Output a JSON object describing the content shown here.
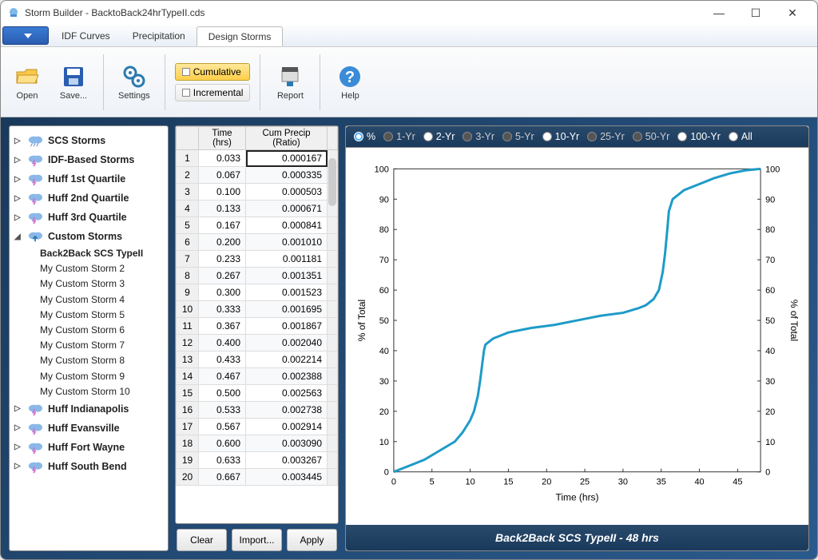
{
  "window": {
    "title": "Storm Builder - BacktoBack24hrTypeII.cds"
  },
  "menubar": {
    "tabs": [
      "IDF Curves",
      "Precipitation",
      "Design Storms"
    ],
    "active": 2
  },
  "ribbon": {
    "open": "Open",
    "save": "Save...",
    "settings": "Settings",
    "cumulative": "Cumulative",
    "incremental": "Incremental",
    "report": "Report",
    "help": "Help"
  },
  "tree": {
    "groups": [
      {
        "label": "SCS Storms",
        "expanded": false,
        "icon": "rain"
      },
      {
        "label": "IDF-Based Storms",
        "expanded": false,
        "icon": "bolt"
      },
      {
        "label": "Huff 1st Quartile",
        "expanded": false,
        "icon": "bolt"
      },
      {
        "label": "Huff 2nd Quartile",
        "expanded": false,
        "icon": "bolt"
      },
      {
        "label": "Huff 3rd Quartile",
        "expanded": false,
        "icon": "bolt"
      },
      {
        "label": "Custom Storms",
        "expanded": true,
        "icon": "up",
        "children": [
          "Back2Back SCS TypeII",
          "My Custom Storm  2",
          "My Custom Storm  3",
          "My Custom Storm  4",
          "My Custom Storm  5",
          "My Custom Storm  6",
          "My Custom Storm  7",
          "My Custom Storm  8",
          "My Custom Storm  9",
          "My Custom Storm  10"
        ],
        "selected": 0
      },
      {
        "label": "Huff Indianapolis",
        "expanded": false,
        "icon": "bolt"
      },
      {
        "label": "Huff Evansville",
        "expanded": false,
        "icon": "bolt"
      },
      {
        "label": "Huff Fort Wayne",
        "expanded": false,
        "icon": "bolt"
      },
      {
        "label": "Huff South Bend",
        "expanded": false,
        "icon": "bolt"
      }
    ]
  },
  "table": {
    "headers": {
      "time": "Time (hrs)",
      "cum": "Cum Precip (Ratio)"
    },
    "rows": [
      [
        "0.033",
        "0.000167"
      ],
      [
        "0.067",
        "0.000335"
      ],
      [
        "0.100",
        "0.000503"
      ],
      [
        "0.133",
        "0.000671"
      ],
      [
        "0.167",
        "0.000841"
      ],
      [
        "0.200",
        "0.001010"
      ],
      [
        "0.233",
        "0.001181"
      ],
      [
        "0.267",
        "0.001351"
      ],
      [
        "0.300",
        "0.001523"
      ],
      [
        "0.333",
        "0.001695"
      ],
      [
        "0.367",
        "0.001867"
      ],
      [
        "0.400",
        "0.002040"
      ],
      [
        "0.433",
        "0.002214"
      ],
      [
        "0.467",
        "0.002388"
      ],
      [
        "0.500",
        "0.002563"
      ],
      [
        "0.533",
        "0.002738"
      ],
      [
        "0.567",
        "0.002914"
      ],
      [
        "0.600",
        "0.003090"
      ],
      [
        "0.633",
        "0.003267"
      ],
      [
        "0.667",
        "0.003445"
      ]
    ],
    "selected_row": 0
  },
  "buttons": {
    "clear": "Clear",
    "import": "Import...",
    "apply": "Apply"
  },
  "radios": {
    "items": [
      {
        "label": "%",
        "state": "on"
      },
      {
        "label": "1-Yr",
        "state": "dim"
      },
      {
        "label": "2-Yr",
        "state": "avail"
      },
      {
        "label": "3-Yr",
        "state": "dim"
      },
      {
        "label": "5-Yr",
        "state": "dim"
      },
      {
        "label": "10-Yr",
        "state": "avail"
      },
      {
        "label": "25-Yr",
        "state": "dim"
      },
      {
        "label": "50-Yr",
        "state": "dim"
      },
      {
        "label": "100-Yr",
        "state": "avail"
      },
      {
        "label": "All",
        "state": "avail"
      }
    ]
  },
  "chart": {
    "type": "line",
    "xlabel": "Time (hrs)",
    "ylabel_left": "% of Total",
    "ylabel_right": "% of Total",
    "xlim": [
      0,
      48
    ],
    "xtick_step": 5,
    "ylim": [
      0,
      100
    ],
    "ytick_step": 10,
    "line_color": "#1e9bc8",
    "line_width": 3,
    "grid_color": "#e0e0e0",
    "axis_color": "#333",
    "background_color": "#ffffff",
    "label_fontsize": 12,
    "data": [
      [
        0,
        0
      ],
      [
        2,
        2
      ],
      [
        4,
        4
      ],
      [
        6,
        7
      ],
      [
        8,
        10
      ],
      [
        9,
        13
      ],
      [
        10,
        17
      ],
      [
        10.5,
        20
      ],
      [
        11,
        25
      ],
      [
        11.3,
        30
      ],
      [
        11.6,
        36
      ],
      [
        11.8,
        40
      ],
      [
        12,
        42
      ],
      [
        13,
        44
      ],
      [
        15,
        46
      ],
      [
        18,
        47.5
      ],
      [
        21,
        48.5
      ],
      [
        24,
        50
      ],
      [
        27,
        51.5
      ],
      [
        30,
        52.5
      ],
      [
        32,
        54
      ],
      [
        33,
        55
      ],
      [
        34,
        57
      ],
      [
        34.7,
        60
      ],
      [
        35.2,
        66
      ],
      [
        35.5,
        72
      ],
      [
        35.8,
        80
      ],
      [
        36,
        86
      ],
      [
        36.5,
        90
      ],
      [
        38,
        93
      ],
      [
        40,
        95
      ],
      [
        42,
        97
      ],
      [
        44,
        98.5
      ],
      [
        46,
        99.5
      ],
      [
        48,
        100
      ]
    ]
  },
  "footer": {
    "text": "Back2Back SCS TypeII - 48 hrs"
  }
}
